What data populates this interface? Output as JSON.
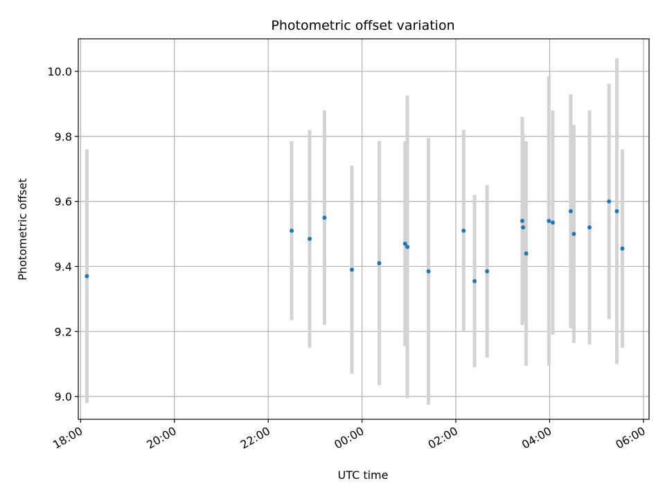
{
  "chart_data": {
    "type": "scatter",
    "title": "Photometric offset variation",
    "xlabel": "UTC time",
    "ylabel": "Photometric offset",
    "x_tick_labels": [
      "18:00",
      "20:00",
      "22:00",
      "00:00",
      "02:00",
      "04:00",
      "06:00"
    ],
    "y_tick_labels": [
      "9.0",
      "9.2",
      "9.4",
      "9.6",
      "9.8",
      "10.0"
    ],
    "y_ticks": [
      9.0,
      9.2,
      9.4,
      9.6,
      9.8,
      10.0
    ],
    "x_ticks_hours": [
      18,
      20,
      22,
      24,
      26,
      28,
      30
    ],
    "xlim_hours": [
      17.95,
      30.12
    ],
    "ylim": [
      8.93,
      10.1
    ],
    "grid": true,
    "colors": {
      "point": "#1f77b4",
      "errorbar": "#d3d3d3",
      "grid": "#b0b0b0",
      "axes": "#000000"
    },
    "points": [
      {
        "time": "18:08",
        "y": 9.37,
        "err": 0.39
      },
      {
        "time": "22:30",
        "y": 9.51,
        "err": 0.275
      },
      {
        "time": "22:53",
        "y": 9.485,
        "err": 0.335
      },
      {
        "time": "23:12",
        "y": 9.55,
        "err": 0.33
      },
      {
        "time": "23:47",
        "y": 9.39,
        "err": 0.32
      },
      {
        "time": "00:22",
        "y": 9.41,
        "err": 0.375
      },
      {
        "time": "00:55",
        "y": 9.47,
        "err": 0.315
      },
      {
        "time": "00:58",
        "y": 9.46,
        "err": 0.465
      },
      {
        "time": "01:25",
        "y": 9.385,
        "err": 0.41
      },
      {
        "time": "02:10",
        "y": 9.51,
        "err": 0.31
      },
      {
        "time": "02:24",
        "y": 9.355,
        "err": 0.265
      },
      {
        "time": "02:40",
        "y": 9.385,
        "err": 0.265
      },
      {
        "time": "03:25",
        "y": 9.54,
        "err": 0.32
      },
      {
        "time": "03:26",
        "y": 9.52,
        "err": 0.29
      },
      {
        "time": "03:30",
        "y": 9.44,
        "err": 0.345
      },
      {
        "time": "03:59",
        "y": 9.54,
        "err": 0.445
      },
      {
        "time": "04:04",
        "y": 9.535,
        "err": 0.345
      },
      {
        "time": "04:27",
        "y": 9.57,
        "err": 0.36
      },
      {
        "time": "04:31",
        "y": 9.5,
        "err": 0.335
      },
      {
        "time": "04:51",
        "y": 9.52,
        "err": 0.36
      },
      {
        "time": "05:16",
        "y": 9.6,
        "err": 0.362
      },
      {
        "time": "05:26",
        "y": 9.57,
        "err": 0.47
      },
      {
        "time": "05:33",
        "y": 9.455,
        "err": 0.305
      }
    ]
  }
}
